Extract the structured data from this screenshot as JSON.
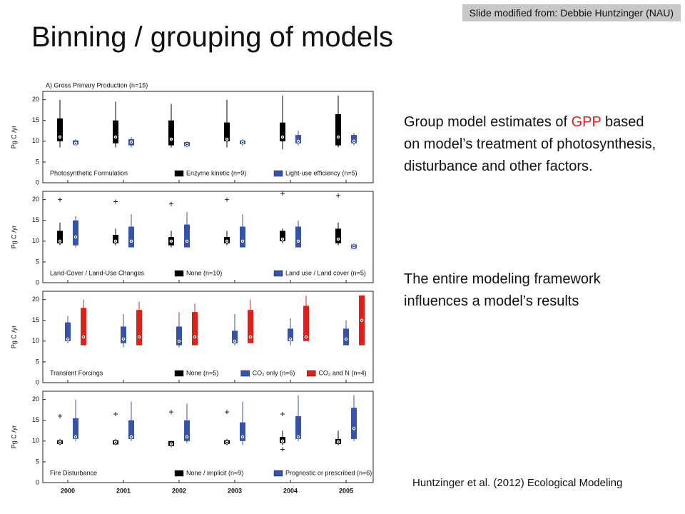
{
  "header": {
    "title": "Binning / grouping of models",
    "credit": "Slide modified from: Debbie Huntzinger (NAU)"
  },
  "body": {
    "p1_before": "Group model estimates of ",
    "p1_highlight": "GPP",
    "p1_after": " based on model’s treatment of photosynthesis, disturbance and other factors.",
    "p2": "The entire modeling framework influences a model’s results",
    "citation": "Huntzinger et al. (2012) Ecological Modeling"
  },
  "chart_data": [
    {
      "type": "box",
      "title": "A) Gross Primary Production (n=15)",
      "panel_label": "Photosynthetic Formulation",
      "ylabel": "Pg C /yr",
      "ylim": [
        0,
        22
      ],
      "yticks": [
        0,
        5,
        10,
        15,
        20
      ],
      "series": [
        {
          "name": "Enzyme kinetic (n=9)",
          "color": "#000000",
          "boxes": [
            {
              "low": 8.5,
              "q1": 10,
              "median": 11,
              "q3": 15.5,
              "high": 20,
              "outliers": []
            },
            {
              "low": 8.5,
              "q1": 9.5,
              "median": 11,
              "q3": 15,
              "high": 19.5,
              "outliers": []
            },
            {
              "low": 8.5,
              "q1": 9,
              "median": 10.5,
              "q3": 15,
              "high": 19,
              "outliers": []
            },
            {
              "low": 8.5,
              "q1": 10,
              "median": 10.5,
              "q3": 14.5,
              "high": 20,
              "outliers": []
            },
            {
              "low": 8,
              "q1": 10,
              "median": 11,
              "q3": 14.5,
              "high": 21,
              "outliers": []
            },
            {
              "low": 8.5,
              "q1": 9,
              "median": 11,
              "q3": 16.5,
              "high": 21,
              "outliers": []
            }
          ]
        },
        {
          "name": "Light-use efficiency (n=5)",
          "color": "#3553a8",
          "boxes": [
            {
              "low": 9,
              "q1": 9.2,
              "median": 9.5,
              "q3": 10.2,
              "high": 10.5,
              "outliers": []
            },
            {
              "low": 8.5,
              "q1": 9,
              "median": 9.8,
              "q3": 10.5,
              "high": 11,
              "outliers": []
            },
            {
              "low": 8.5,
              "q1": 8.8,
              "median": 9.2,
              "q3": 9.8,
              "high": 10,
              "outliers": []
            },
            {
              "low": 9,
              "q1": 9.3,
              "median": 9.7,
              "q3": 10.2,
              "high": 10.5,
              "outliers": []
            },
            {
              "low": 9,
              "q1": 9.5,
              "median": 10,
              "q3": 11.5,
              "high": 12.5,
              "outliers": []
            },
            {
              "low": 9,
              "q1": 9.5,
              "median": 10,
              "q3": 11.5,
              "high": 12,
              "outliers": []
            }
          ]
        }
      ]
    },
    {
      "type": "box",
      "panel_label": "Land-Cover / Land-Use Changes",
      "ylabel": "Pg C /yr",
      "ylim": [
        0,
        22
      ],
      "yticks": [
        0,
        5,
        10,
        15,
        20
      ],
      "series": [
        {
          "name": "None (n=10)",
          "color": "#000000",
          "boxes": [
            {
              "low": 9,
              "q1": 9.5,
              "median": 10,
              "q3": 12.5,
              "high": 14.5,
              "outliers": [
                20
              ]
            },
            {
              "low": 9,
              "q1": 9.5,
              "median": 10,
              "q3": 11.5,
              "high": 13,
              "outliers": [
                19.5
              ]
            },
            {
              "low": 8.5,
              "q1": 9,
              "median": 10,
              "q3": 11,
              "high": 12.5,
              "outliers": [
                19
              ]
            },
            {
              "low": 9,
              "q1": 9.5,
              "median": 10,
              "q3": 11,
              "high": 12.5,
              "outliers": [
                20
              ]
            },
            {
              "low": 9.5,
              "q1": 10,
              "median": 10.5,
              "q3": 12.5,
              "high": 13,
              "outliers": [
                21.5
              ]
            },
            {
              "low": 9,
              "q1": 9.5,
              "median": 10.5,
              "q3": 13,
              "high": 14.5,
              "outliers": [
                21
              ]
            }
          ]
        },
        {
          "name": "Land use / Land cover (n=5)",
          "color": "#3553a8",
          "boxes": [
            {
              "low": 8.5,
              "q1": 9,
              "median": 11,
              "q3": 15,
              "high": 16,
              "outliers": []
            },
            {
              "low": 8.5,
              "q1": 8.5,
              "median": 10,
              "q3": 13.5,
              "high": 16.5,
              "outliers": []
            },
            {
              "low": 8.5,
              "q1": 8.5,
              "median": 10,
              "q3": 14,
              "high": 17,
              "outliers": []
            },
            {
              "low": 8.5,
              "q1": 8.5,
              "median": 10,
              "q3": 13.5,
              "high": 16.5,
              "outliers": []
            },
            {
              "low": 8.5,
              "q1": 8.5,
              "median": 10,
              "q3": 13.5,
              "high": 15,
              "outliers": []
            },
            {
              "low": 8,
              "q1": 8.2,
              "median": 8.7,
              "q3": 9.2,
              "high": 9.5,
              "outliers": []
            }
          ]
        }
      ]
    },
    {
      "type": "box",
      "panel_label": "Transient Forcings",
      "ylabel": "Pg C /yr",
      "ylim": [
        0,
        22
      ],
      "yticks": [
        0,
        5,
        10,
        15,
        20
      ],
      "series": [
        {
          "name": "None (n=5)",
          "color": "#000000",
          "boxes": [
            null,
            null,
            null,
            null,
            null,
            null
          ]
        },
        {
          "name": "CO₂ only (n=6)",
          "color": "#3553a8",
          "boxes": [
            {
              "low": 9.5,
              "q1": 10,
              "median": 10.5,
              "q3": 14.5,
              "high": 16,
              "outliers": []
            },
            {
              "low": 8.5,
              "q1": 9.5,
              "median": 10.5,
              "q3": 13.5,
              "high": 16.5,
              "outliers": []
            },
            {
              "low": 8.5,
              "q1": 9,
              "median": 10,
              "q3": 13.5,
              "high": 17,
              "outliers": []
            },
            {
              "low": 9,
              "q1": 9.5,
              "median": 10,
              "q3": 12.5,
              "high": 16.5,
              "outliers": []
            },
            {
              "low": 9,
              "q1": 10,
              "median": 10.5,
              "q3": 13,
              "high": 15.5,
              "outliers": []
            },
            {
              "low": 9,
              "q1": 9,
              "median": 10.5,
              "q3": 13,
              "high": 15,
              "outliers": []
            }
          ]
        },
        {
          "name": "CO₂ and N (n=4)",
          "color": "#e0201a",
          "boxes": [
            {
              "low": 9,
              "q1": 9,
              "median": 11,
              "q3": 18,
              "high": 20,
              "outliers": []
            },
            {
              "low": 9,
              "q1": 9,
              "median": 11,
              "q3": 17.5,
              "high": 19.5,
              "outliers": []
            },
            {
              "low": 9,
              "q1": 9,
              "median": 11,
              "q3": 17,
              "high": 19,
              "outliers": []
            },
            {
              "low": 9.5,
              "q1": 9.5,
              "median": 11,
              "q3": 17.5,
              "high": 20,
              "outliers": []
            },
            {
              "low": 10,
              "q1": 10,
              "median": 11,
              "q3": 18.5,
              "high": 21,
              "outliers": []
            },
            {
              "low": 9,
              "q1": 9,
              "median": 15,
              "q3": 21,
              "high": 21,
              "outliers": []
            }
          ]
        }
      ]
    },
    {
      "type": "box",
      "panel_label": "Fire Disturbance",
      "ylabel": "Pg C /yr",
      "ylim": [
        0,
        22
      ],
      "yticks": [
        0,
        5,
        10,
        15,
        20
      ],
      "categories": [
        "2000",
        "2001",
        "2002",
        "2003",
        "2004",
        "2005"
      ],
      "series": [
        {
          "name": "None / implicit (n=9)",
          "color": "#000000",
          "boxes": [
            {
              "low": 9,
              "q1": 9.3,
              "median": 9.7,
              "q3": 10.2,
              "high": 10.5,
              "outliers": [
                16
              ]
            },
            {
              "low": 9,
              "q1": 9.2,
              "median": 9.7,
              "q3": 10.2,
              "high": 10.5,
              "outliers": [
                16.5
              ]
            },
            {
              "low": 8.5,
              "q1": 8.8,
              "median": 9.3,
              "q3": 10,
              "high": 10,
              "outliers": [
                17
              ]
            },
            {
              "low": 9,
              "q1": 9.3,
              "median": 9.7,
              "q3": 10.2,
              "high": 10.5,
              "outliers": [
                17
              ]
            },
            {
              "low": 9,
              "q1": 9.5,
              "median": 10,
              "q3": 11,
              "high": 12.5,
              "outliers": [
                16.5,
                8
              ]
            },
            {
              "low": 9,
              "q1": 9.3,
              "median": 9.8,
              "q3": 10.5,
              "high": 12.5,
              "outliers": []
            }
          ]
        },
        {
          "name": "Prognostic or prescribed (n=6)",
          "color": "#3553a8",
          "boxes": [
            {
              "low": 10,
              "q1": 10.5,
              "median": 11,
              "q3": 15.5,
              "high": 20,
              "outliers": []
            },
            {
              "low": 10,
              "q1": 10.5,
              "median": 11,
              "q3": 15,
              "high": 19.5,
              "outliers": []
            },
            {
              "low": 9.5,
              "q1": 10,
              "median": 11,
              "q3": 15,
              "high": 19,
              "outliers": []
            },
            {
              "low": 9,
              "q1": 10,
              "median": 11,
              "q3": 14.5,
              "high": 19.5,
              "outliers": []
            },
            {
              "low": 10,
              "q1": 10.5,
              "median": 11,
              "q3": 16,
              "high": 21,
              "outliers": []
            },
            {
              "low": 10,
              "q1": 10.5,
              "median": 13,
              "q3": 18,
              "high": 21,
              "outliers": []
            }
          ]
        }
      ]
    }
  ]
}
